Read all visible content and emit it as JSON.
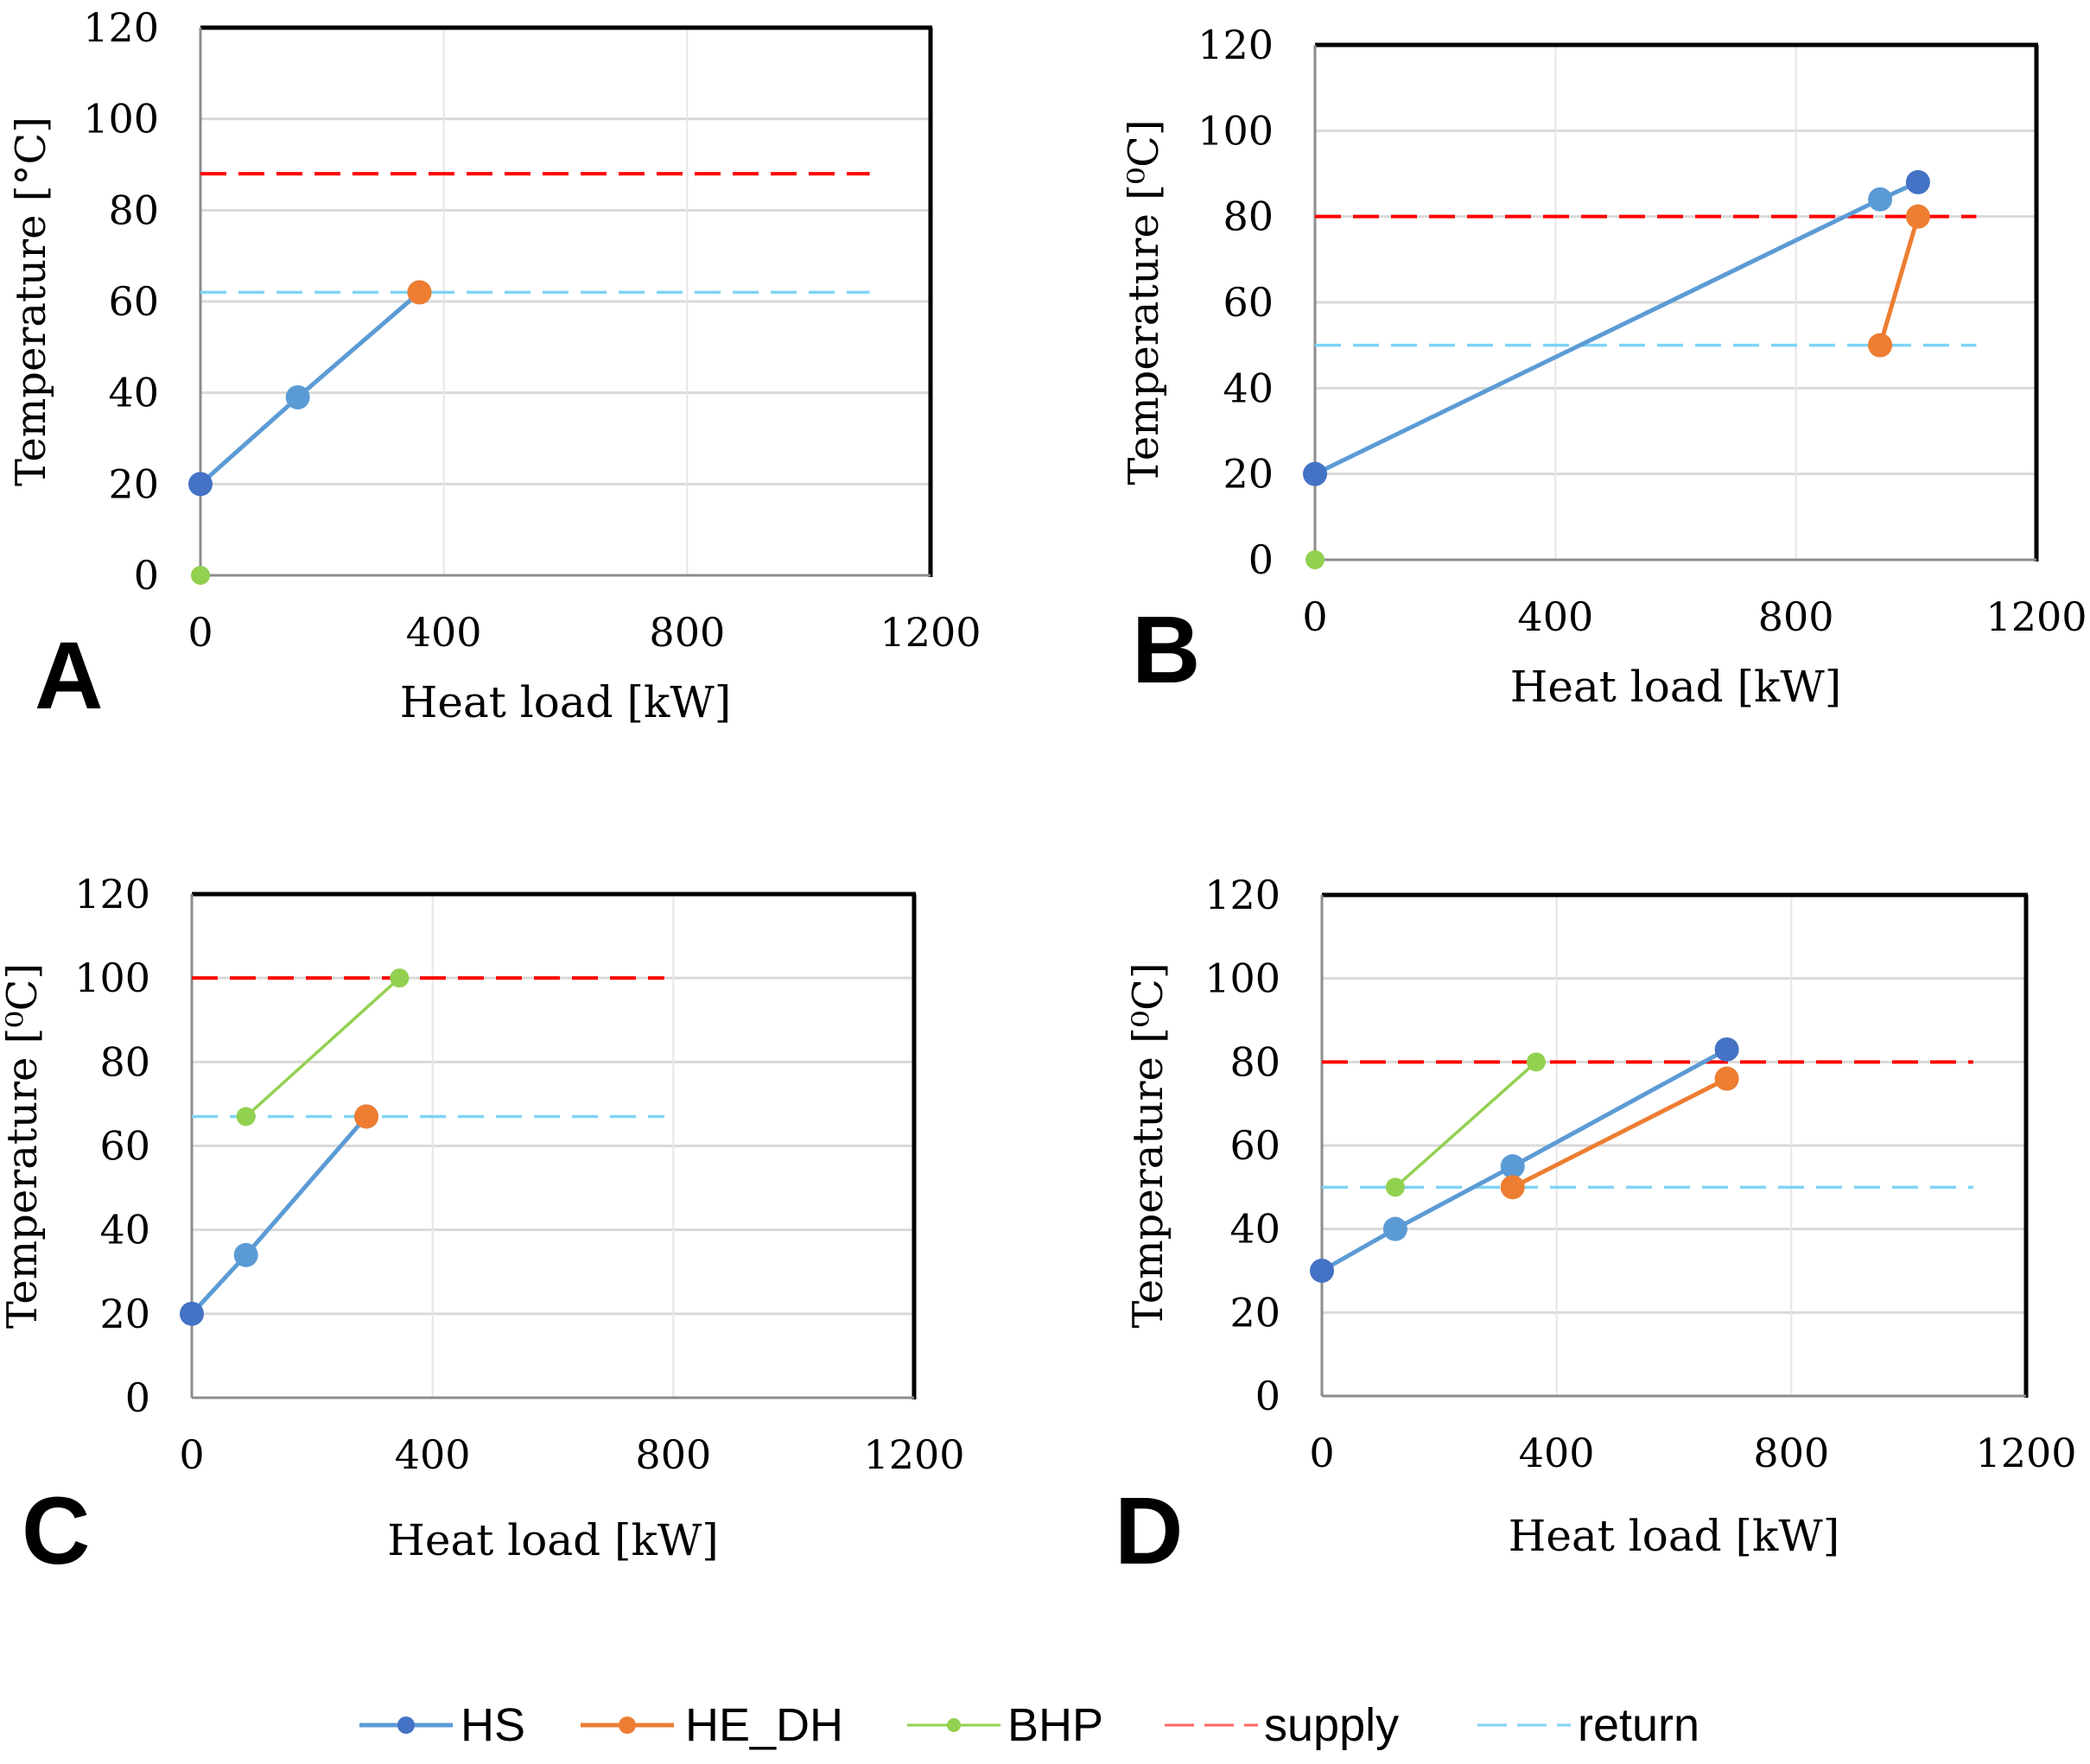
{
  "legend": {
    "items": [
      {
        "key": "HS",
        "label": "HS"
      },
      {
        "key": "HE_DH",
        "label": "HE_DH"
      },
      {
        "key": "BHP",
        "label": "BHP"
      },
      {
        "key": "supply",
        "label": "supply"
      },
      {
        "key": "return",
        "label": "return"
      }
    ]
  },
  "colors": {
    "HS": "#5b9bd5",
    "HS_dark": "#4472c4",
    "HE_DH": "#ed7d31",
    "BHP": "#92d050",
    "supply": "#ff0000",
    "return": "#7fd4f5",
    "grid": "#d9d9d9",
    "frame": "#000000"
  },
  "chart_data": [
    {
      "panel": "A",
      "type": "line",
      "xlabel": "Heat load [kW]",
      "ylabel": "Temperature [°C]",
      "xlim": [
        0,
        1200
      ],
      "ylim": [
        0,
        120
      ],
      "xticks": [
        "0",
        "400",
        "800",
        "1200"
      ],
      "yticks": [
        "0",
        "20",
        "40",
        "60",
        "80",
        "100",
        "120"
      ],
      "series": [
        {
          "name": "HS",
          "points": [
            [
              0,
              20
            ],
            [
              160,
              39
            ],
            [
              360,
              62
            ]
          ],
          "marker_shades": [
            "dark",
            "light",
            "light"
          ]
        },
        {
          "name": "HE_DH",
          "points": [
            [
              360,
              62
            ]
          ]
        },
        {
          "name": "BHP",
          "points": [
            [
              0,
              0
            ]
          ]
        }
      ],
      "supply": {
        "y": 88,
        "x": [
          0,
          1100
        ]
      },
      "return": {
        "y": 62,
        "x": [
          0,
          1100
        ]
      }
    },
    {
      "panel": "B",
      "type": "line",
      "xlabel": "Heat load [kW]",
      "ylabel": "Temperature [⁰C]",
      "xlim": [
        0,
        1200
      ],
      "ylim": [
        0,
        120
      ],
      "xticks": [
        "0",
        "400",
        "800",
        "1200"
      ],
      "yticks": [
        "0",
        "20",
        "40",
        "60",
        "80",
        "100",
        "120"
      ],
      "series": [
        {
          "name": "HS",
          "points": [
            [
              0,
              20
            ],
            [
              940,
              84
            ],
            [
              1003,
              88
            ]
          ],
          "marker_shades": [
            "dark",
            "light",
            "dark"
          ]
        },
        {
          "name": "HE_DH",
          "points": [
            [
              940,
              50
            ],
            [
              1003,
              80
            ]
          ]
        },
        {
          "name": "BHP",
          "points": [
            [
              0,
              0
            ]
          ]
        }
      ],
      "supply": {
        "y": 80,
        "x": [
          0,
          1100
        ]
      },
      "return": {
        "y": 50,
        "x": [
          0,
          1100
        ]
      }
    },
    {
      "panel": "C",
      "type": "line",
      "xlabel": "Heat load [kW]",
      "ylabel": "Temperature [⁰C]",
      "xlim": [
        0,
        1200
      ],
      "ylim": [
        0,
        120
      ],
      "xticks": [
        "0",
        "400",
        "800",
        "1200"
      ],
      "yticks": [
        "0",
        "20",
        "40",
        "60",
        "80",
        "100",
        "120"
      ],
      "series": [
        {
          "name": "HS",
          "points": [
            [
              0,
              20
            ],
            [
              90,
              34
            ],
            [
              290,
              67
            ]
          ],
          "marker_shades": [
            "dark",
            "light",
            "light"
          ]
        },
        {
          "name": "HE_DH",
          "points": [
            [
              290,
              67
            ]
          ]
        },
        {
          "name": "BHP",
          "points": [
            [
              90,
              67
            ],
            [
              345,
              100
            ]
          ]
        }
      ],
      "supply": {
        "y": 100,
        "x": [
          0,
          785
        ]
      },
      "return": {
        "y": 67,
        "x": [
          0,
          785
        ]
      }
    },
    {
      "panel": "D",
      "type": "line",
      "xlabel": "Heat load [kW]",
      "ylabel": "Temperature [⁰C]",
      "xlim": [
        0,
        1200
      ],
      "ylim": [
        0,
        120
      ],
      "xticks": [
        "0",
        "400",
        "800",
        "1200"
      ],
      "yticks": [
        "0",
        "20",
        "40",
        "60",
        "80",
        "100",
        "120"
      ],
      "series": [
        {
          "name": "HS",
          "points": [
            [
              0,
              30
            ],
            [
              125,
              40
            ],
            [
              325,
              55
            ],
            [
              690,
              83
            ]
          ],
          "marker_shades": [
            "dark",
            "light",
            "light",
            "dark"
          ]
        },
        {
          "name": "HE_DH",
          "points": [
            [
              325,
              50
            ],
            [
              690,
              76
            ]
          ]
        },
        {
          "name": "BHP",
          "points": [
            [
              125,
              50
            ],
            [
              365,
              80
            ]
          ]
        }
      ],
      "supply": {
        "y": 80,
        "x": [
          0,
          1110
        ]
      },
      "return": {
        "y": 50,
        "x": [
          0,
          1110
        ]
      }
    }
  ]
}
